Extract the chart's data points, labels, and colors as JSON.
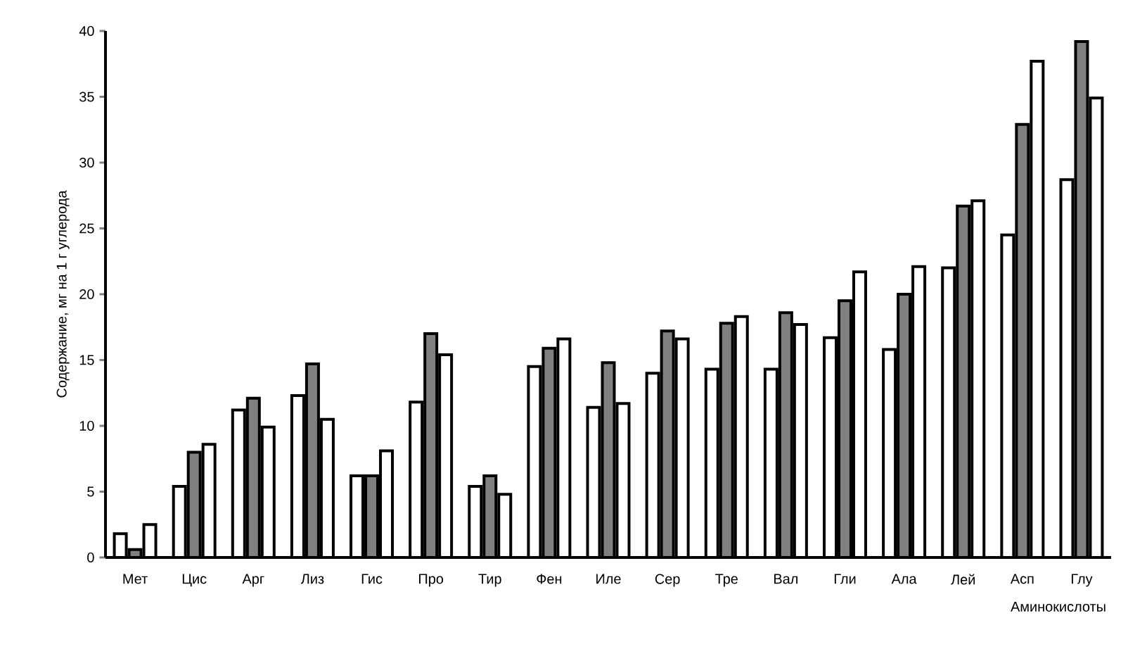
{
  "chart_data": {
    "type": "bar",
    "xlabel": "Аминокислоты",
    "ylabel": "Содержание, мг на 1 г углерода",
    "categories": [
      "Мет",
      "Цис",
      "Арг",
      "Лиз",
      "Гис",
      "Про",
      "Тир",
      "Фен",
      "Иле",
      "Сер",
      "Тре",
      "Вал",
      "Гли",
      "Ала",
      "Лей",
      "Асп",
      "Глу"
    ],
    "series": [
      {
        "color": "#ffffff",
        "values": [
          1.8,
          5.4,
          11.2,
          12.3,
          6.2,
          11.8,
          5.4,
          14.5,
          11.4,
          14.0,
          14.3,
          14.3,
          16.7,
          15.8,
          22.0,
          24.5,
          28.7
        ]
      },
      {
        "color": "#808080",
        "values": [
          0.6,
          8.0,
          12.1,
          14.7,
          6.2,
          17.0,
          6.2,
          15.9,
          14.8,
          17.2,
          17.8,
          18.6,
          19.5,
          20.0,
          26.7,
          32.9,
          39.2
        ]
      },
      {
        "color": "#ffffff",
        "values": [
          2.5,
          8.6,
          9.9,
          10.5,
          8.1,
          15.4,
          4.8,
          16.6,
          11.7,
          16.6,
          18.3,
          17.7,
          21.7,
          22.1,
          27.1,
          37.7,
          34.9
        ]
      }
    ],
    "ylim": [
      0,
      40
    ],
    "yticks": [
      0,
      5,
      10,
      15,
      20,
      25,
      30,
      35,
      40
    ]
  }
}
